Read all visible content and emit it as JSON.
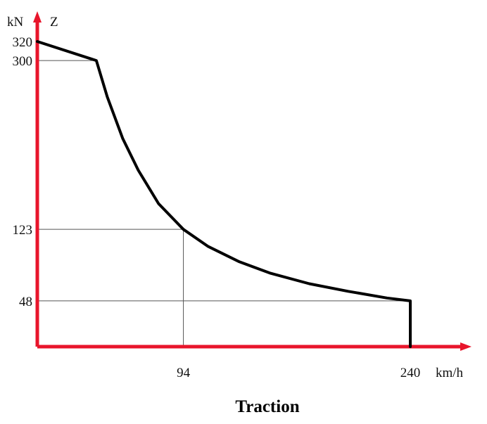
{
  "chart_data": {
    "type": "line",
    "title": "Traction",
    "xlabel": "km/h",
    "ylabel": "kN",
    "series_label": "Z",
    "series": [
      {
        "values": [
          {
            "x": 0,
            "y": 320
          },
          {
            "x": 38,
            "y": 300
          },
          {
            "x": 45,
            "y": 262
          },
          {
            "x": 55,
            "y": 218
          },
          {
            "x": 65,
            "y": 185
          },
          {
            "x": 78,
            "y": 150
          },
          {
            "x": 94,
            "y": 123
          },
          {
            "x": 110,
            "y": 105
          },
          {
            "x": 130,
            "y": 89
          },
          {
            "x": 150,
            "y": 77
          },
          {
            "x": 175,
            "y": 66
          },
          {
            "x": 200,
            "y": 58
          },
          {
            "x": 225,
            "y": 51
          },
          {
            "x": 240,
            "y": 48
          },
          {
            "x": 240,
            "y": 0
          }
        ]
      }
    ],
    "xticks": [
      "94",
      "240"
    ],
    "yticks": [
      "320",
      "300",
      "123",
      "48"
    ],
    "reference_lines": {
      "horizontal": [
        300,
        123,
        48
      ],
      "vertical": [
        94
      ]
    },
    "xlim": [
      0,
      280
    ],
    "ylim": [
      0,
      340
    ],
    "grid": false
  }
}
